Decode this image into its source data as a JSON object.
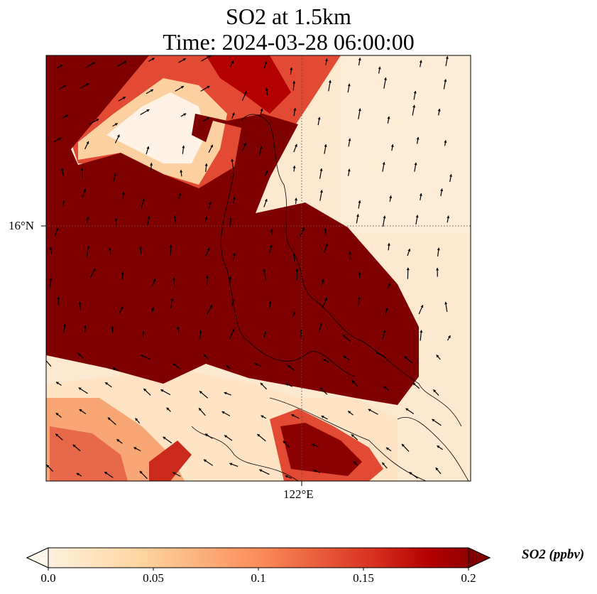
{
  "title": {
    "line1": "SO2 at 1.5km",
    "line2": "Time: 2024-03-28 06:00:00"
  },
  "map": {
    "lat_label": "16°N",
    "lon_label": "122°E",
    "field": "SO2 concentration at 1.5km with wind vectors",
    "colors": {
      "low": "#fff5eb",
      "mid": "#fc8d59",
      "high": "#7f0000"
    }
  },
  "chart_data": {
    "type": "heatmap",
    "title": "SO2 at 1.5km / Time: 2024-03-28 06:00:00",
    "xlabel": "",
    "ylabel": "",
    "x_ticks": [
      "122°E"
    ],
    "y_ticks": [
      "16°N"
    ],
    "colorbar": {
      "label": "SO2 (ppbv)",
      "range": [
        0.0,
        0.2
      ],
      "ticks": [
        "0.0",
        "0.05",
        "0.1",
        "0.15",
        "0.2"
      ],
      "extend": "both",
      "colormap": "OrRd"
    }
  }
}
